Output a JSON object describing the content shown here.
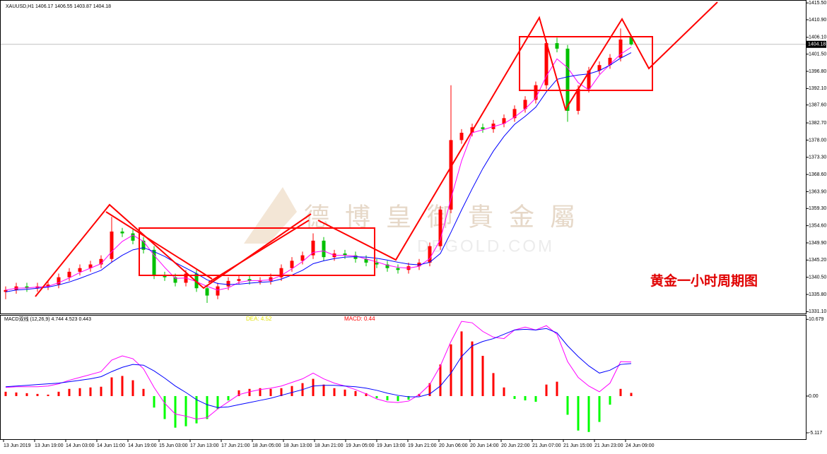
{
  "chart_data": [
    {
      "type": "candlestick",
      "title": "XAUUSD,H1  1406.17 1406.55 1403.87 1404.18",
      "annotation": "黄金一小时周期图",
      "watermark": "德 博 皇 御 貴 金 屬",
      "watermark_sub": "DBGOLD.COM",
      "last_price": 1404.18,
      "last_price_label": "1404.18",
      "up_color": "#ff0000",
      "down_color": "#00c000",
      "open": [
        1336.5,
        1337.0,
        1338.0,
        1337.5,
        1338.0,
        1338.5,
        1340.5,
        1342.0,
        1343.0,
        1344.0,
        1345.5,
        1353.0,
        1352.5,
        1350.5,
        1348.0,
        1341.0,
        1340.5,
        1339.0,
        1341.5,
        1337.5,
        1335.5,
        1338.0,
        1339.5,
        1340.0,
        1339.5,
        1339.5,
        1340.5,
        1343.0,
        1345.0,
        1346.5,
        1350.5,
        1346.0,
        1347.0,
        1346.5,
        1345.5,
        1344.5,
        1344.0,
        1343.0,
        1342.5,
        1343.5,
        1344.5,
        1349.0,
        1359.0,
        1378.0,
        1380.0,
        1381.5,
        1381.0,
        1382.5,
        1384.0,
        1386.5,
        1389.0,
        1393.0,
        1404.5,
        1403.0,
        1386.0,
        1392.0,
        1397.0,
        1398.5,
        1400.5,
        1406.17
      ],
      "high": [
        1338,
        1339,
        1339,
        1339,
        1339.5,
        1341.5,
        1343,
        1344,
        1345,
        1346.5,
        1357,
        1354,
        1353.5,
        1351.5,
        1349,
        1342,
        1341.5,
        1342.5,
        1342.5,
        1338.5,
        1339,
        1340.5,
        1341,
        1341,
        1340.5,
        1341.5,
        1344,
        1346,
        1347.5,
        1352.5,
        1351.5,
        1348,
        1348,
        1347.5,
        1346.5,
        1345.5,
        1345,
        1344,
        1344.5,
        1345.5,
        1350,
        1360,
        1393,
        1381,
        1382.5,
        1382.5,
        1383.5,
        1385,
        1387.5,
        1390,
        1394,
        1405.5,
        1406,
        1404,
        1393,
        1398,
        1399.5,
        1401.5,
        1408.5,
        1406.55
      ],
      "low": [
        1334.5,
        1336,
        1336.5,
        1336.5,
        1337,
        1337.5,
        1339.5,
        1341,
        1342,
        1343,
        1344.5,
        1351.5,
        1349.5,
        1347,
        1340,
        1339.5,
        1338,
        1338,
        1336.5,
        1333.5,
        1334.5,
        1337,
        1338.5,
        1338.5,
        1338.5,
        1338.5,
        1339.5,
        1342,
        1344,
        1345.5,
        1345,
        1345,
        1345.5,
        1344.5,
        1343.5,
        1343,
        1342,
        1341.5,
        1341.5,
        1342.5,
        1343.5,
        1348,
        1358,
        1377,
        1379,
        1380,
        1380,
        1381.5,
        1383,
        1385.5,
        1388,
        1392,
        1402,
        1383,
        1385,
        1391,
        1396,
        1397.5,
        1399.5,
        1403.87
      ],
      "close": [
        1337.0,
        1338.0,
        1337.5,
        1338.0,
        1338.5,
        1340.5,
        1342.0,
        1343.0,
        1344.0,
        1345.5,
        1353.0,
        1352.5,
        1350.5,
        1348.0,
        1341.0,
        1340.5,
        1339.0,
        1341.5,
        1337.5,
        1335.5,
        1338.0,
        1339.5,
        1340.0,
        1339.5,
        1339.5,
        1340.5,
        1343.0,
        1345.0,
        1346.5,
        1350.5,
        1346.0,
        1347.0,
        1346.5,
        1345.5,
        1344.5,
        1344.0,
        1343.0,
        1342.5,
        1343.5,
        1344.5,
        1349.0,
        1359.0,
        1378.0,
        1380.0,
        1381.5,
        1381.0,
        1382.5,
        1384.0,
        1386.5,
        1389.0,
        1393.0,
        1404.5,
        1403.0,
        1386.0,
        1392.0,
        1397.0,
        1398.5,
        1400.5,
        1405.5,
        1404.18
      ],
      "lines": [
        {
          "color": "#ff00ff",
          "values": [
            1337,
            1337.5,
            1337.6,
            1337.8,
            1338,
            1339,
            1340.3,
            1341.8,
            1343,
            1344.2,
            1347.5,
            1350.3,
            1352,
            1350.3,
            1346.5,
            1343.2,
            1340.2,
            1340.3,
            1339.3,
            1338,
            1337,
            1337.6,
            1339.1,
            1339.6,
            1339.6,
            1339.8,
            1341,
            1342.8,
            1344.8,
            1347.3,
            1347.7,
            1346.5,
            1346.5,
            1346.3,
            1345.5,
            1344.7,
            1343.8,
            1343.2,
            1343,
            1343.5,
            1345.6,
            1350.8,
            1362,
            1372.3,
            1380,
            1380.8,
            1381.7,
            1382.5,
            1384.3,
            1386.5,
            1389.5,
            1395.5,
            1400.2,
            1397.8,
            1393.7,
            1391.7,
            1395.8,
            1398.7,
            1401.5,
            1403.4
          ]
        },
        {
          "color": "#0000ff",
          "values": [
            1336.5,
            1337,
            1337.2,
            1337.5,
            1337.8,
            1338.4,
            1339.2,
            1340.2,
            1341.3,
            1342.4,
            1344.6,
            1346.5,
            1348,
            1348.6,
            1347.5,
            1346.2,
            1344.5,
            1343,
            1341.5,
            1339.8,
            1338.8,
            1338.5,
            1338.6,
            1338.9,
            1339.1,
            1339.3,
            1340,
            1341.1,
            1342.4,
            1344.2,
            1345,
            1345.6,
            1346,
            1346.1,
            1346,
            1345.7,
            1345.2,
            1344.6,
            1344.1,
            1343.9,
            1344.6,
            1347,
            1352.8,
            1358.9,
            1364.7,
            1370.2,
            1375,
            1379,
            1382.3,
            1384.5,
            1387,
            1391.2,
            1394.6,
            1395.3,
            1395.8,
            1396.1,
            1397,
            1398.5,
            1400.4,
            1401.9
          ]
        }
      ],
      "ylim": [
        1330.4,
        1416.3
      ],
      "yticks": [
        {
          "value": 1415.5,
          "label": "1415.50"
        },
        {
          "value": 1410.9,
          "label": "1410.90"
        },
        {
          "value": 1406.1,
          "label": "1406.10"
        },
        {
          "value": 1401.5,
          "label": "1401.50"
        },
        {
          "value": 1396.8,
          "label": "1396.80"
        },
        {
          "value": 1392.1,
          "label": "1392.10"
        },
        {
          "value": 1387.6,
          "label": "1387.60"
        },
        {
          "value": 1382.7,
          "label": "1382.70"
        },
        {
          "value": 1378,
          "label": "1378.00"
        },
        {
          "value": 1373.3,
          "label": "1373.30"
        },
        {
          "value": 1368.6,
          "label": "1368.60"
        },
        {
          "value": 1363.9,
          "label": "1363.90"
        },
        {
          "value": 1359.3,
          "label": "1359.30"
        },
        {
          "value": 1354.6,
          "label": "1354.60"
        },
        {
          "value": 1349.9,
          "label": "1349.90"
        },
        {
          "value": 1345.2,
          "label": "1345.20"
        },
        {
          "value": 1340.5,
          "label": "1340.50"
        },
        {
          "value": 1335.8,
          "label": "1335.80"
        },
        {
          "value": 1331.1,
          "label": "1331.10"
        }
      ]
    },
    {
      "type": "macd",
      "title": "MACD双线 (12,26,9) 4.744 4.523 0.443",
      "dea_label": "DEA:   4.52",
      "macd_label": "MACD:   0.44",
      "histogram": [
        0.6,
        0.5,
        0.4,
        0.3,
        0.2,
        0.6,
        1.0,
        1.1,
        1.2,
        1.3,
        2.6,
        2.8,
        2.2,
        1.0,
        -1.6,
        -3.2,
        -4.4,
        -4.2,
        -3.8,
        -3.2,
        -1.8,
        -0.6,
        0.8,
        1.0,
        1.1,
        1.0,
        1.1,
        1.4,
        1.8,
        2.4,
        1.6,
        1.1,
        0.9,
        0.7,
        0.4,
        -0.3,
        -0.6,
        -0.7,
        -0.5,
        0.3,
        1.8,
        4.4,
        7.2,
        9.0,
        7.6,
        5.6,
        3.2,
        1.2,
        -0.4,
        -0.6,
        -0.8,
        1.6,
        2.0,
        -2.6,
        -4.8,
        -5.0,
        -3.6,
        -1.2,
        1.0,
        0.443
      ],
      "pos_color": "#ff0000",
      "neg_color": "#00ff00",
      "lines": [
        {
          "color": "#ff00ff",
          "values": [
            1.2,
            1.3,
            1.3,
            1.3,
            1.4,
            1.7,
            2.2,
            2.6,
            3.0,
            3.4,
            5.0,
            5.6,
            5.2,
            3.8,
            1.2,
            -1.0,
            -2.5,
            -2.8,
            -3.2,
            -3.0,
            -1.8,
            -0.8,
            0.2,
            0.6,
            0.9,
            1.1,
            1.4,
            1.9,
            2.4,
            3.2,
            2.4,
            1.8,
            1.4,
            0.9,
            0.3,
            -0.4,
            -0.8,
            -0.9,
            -0.7,
            0.2,
            1.6,
            4.2,
            7.6,
            10.4,
            10.2,
            9.0,
            8.2,
            8.0,
            9.2,
            9.6,
            9.2,
            9.8,
            8.6,
            4.8,
            2.6,
            1.4,
            0.6,
            1.8,
            4.8,
            4.744
          ]
        },
        {
          "color": "#0000ff",
          "values": [
            1.3,
            1.4,
            1.5,
            1.6,
            1.7,
            1.8,
            2.0,
            2.2,
            2.4,
            2.7,
            3.4,
            4.0,
            4.4,
            4.3,
            3.5,
            2.5,
            1.4,
            0.5,
            -0.5,
            -1.2,
            -1.6,
            -1.5,
            -1.2,
            -0.9,
            -0.6,
            -0.3,
            0.1,
            0.5,
            0.9,
            1.4,
            1.5,
            1.5,
            1.4,
            1.3,
            1.1,
            0.8,
            0.4,
            0.1,
            -0.1,
            -0.1,
            0.3,
            1.4,
            3.2,
            5.5,
            7.0,
            7.6,
            8.0,
            8.6,
            9.2,
            9.3,
            9.2,
            9.4,
            8.8,
            7.0,
            5.5,
            4.2,
            3.2,
            3.6,
            4.4,
            4.523
          ]
        }
      ],
      "ylim": [
        -6,
        11.2
      ],
      "yticks": [
        10.679,
        {
          "value": 0,
          "label": "0.00"
        },
        -5.117
      ],
      "time_labels": [
        "13 Jun 2019",
        "13 Jun 19:00",
        "14 Jun 03:00",
        "14 Jun 11:00",
        "14 Jun 19:00",
        "15 Jun 03:00",
        "17 Jun 13:00",
        "17 Jun 21:00",
        "18 Jun 05:00",
        "18 Jun 13:00",
        "18 Jun 21:00",
        "19 Jun 05:00",
        "19 Jun 13:00",
        "19 Jun 21:00",
        "20 Jun 06:00",
        "20 Jun 14:00",
        "20 Jun 22:00",
        "21 Jun 07:00",
        "21 Jun 15:00",
        "21 Jun 23:00",
        "24 Jun 09:00"
      ]
    }
  ]
}
